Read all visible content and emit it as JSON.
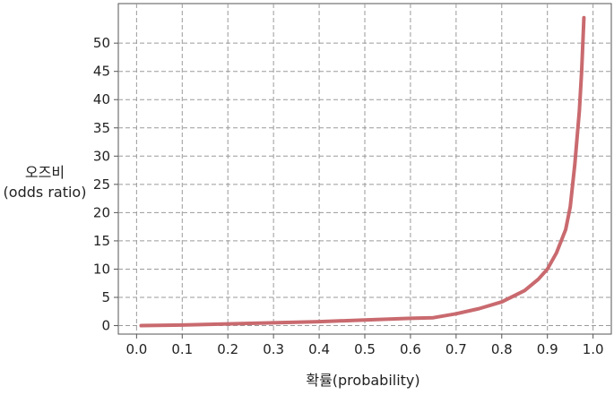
{
  "chart_data": {
    "type": "line",
    "xlabel": "확률(probability)",
    "ylabel_line1": "오즈비",
    "ylabel_line2": "(odds ratio)",
    "x_ticks": [
      "0.0",
      "0.1",
      "0.2",
      "0.3",
      "0.4",
      "0.5",
      "0.6",
      "0.7",
      "0.8",
      "0.9",
      "1.0"
    ],
    "y_ticks": [
      "0",
      "5",
      "10",
      "15",
      "20",
      "25",
      "30",
      "35",
      "40",
      "45",
      "50"
    ],
    "xlim": [
      -0.04,
      1.04
    ],
    "ylim": [
      -1.5,
      57
    ],
    "grid": true,
    "grid_style": "dashed",
    "series": [
      {
        "color": "#c96a6f",
        "x": [
          0.01,
          0.1,
          0.2,
          0.3,
          0.4,
          0.5,
          0.6,
          0.65,
          0.7,
          0.75,
          0.8,
          0.85,
          0.88,
          0.9,
          0.92,
          0.94,
          0.95,
          0.96,
          0.97,
          0.975,
          0.98
        ],
        "y": [
          0.0,
          0.1,
          0.3,
          0.5,
          0.7,
          1.0,
          1.3,
          1.4,
          2.1,
          3.0,
          4.2,
          6.2,
          8.2,
          10.0,
          12.9,
          17.0,
          21.0,
          28.5,
          38.0,
          45.0,
          54.5
        ]
      }
    ]
  }
}
